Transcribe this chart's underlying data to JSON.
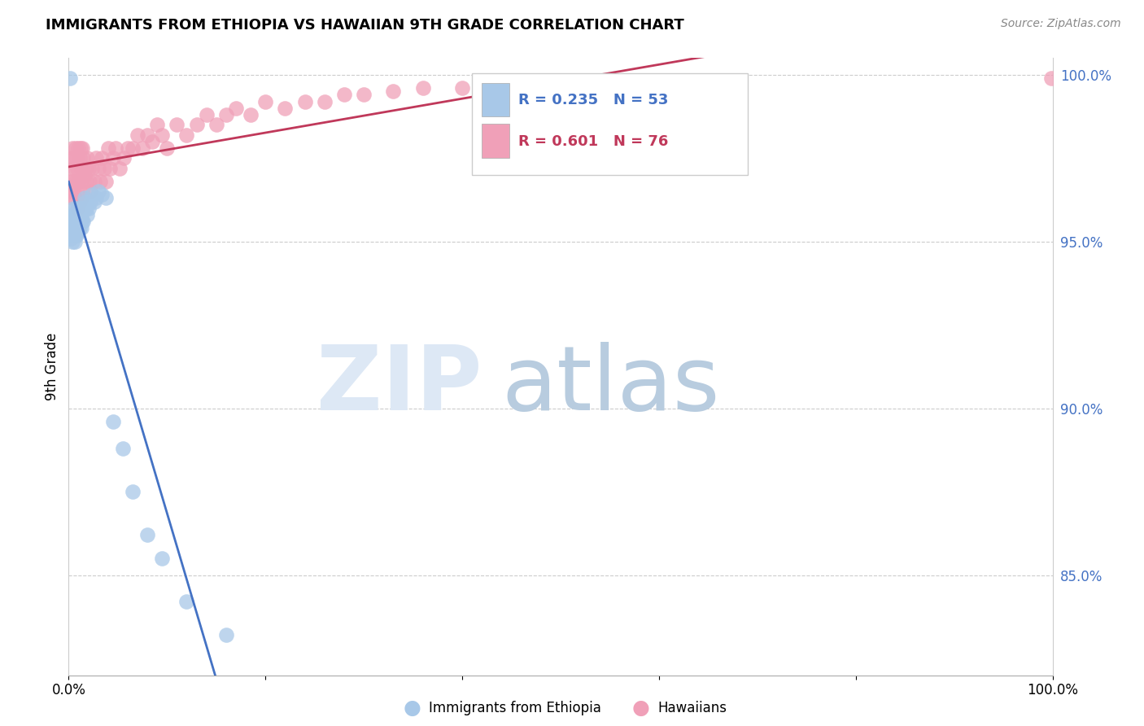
{
  "title": "IMMIGRANTS FROM ETHIOPIA VS HAWAIIAN 9TH GRADE CORRELATION CHART",
  "source": "Source: ZipAtlas.com",
  "ylabel": "9th Grade",
  "legend_r_blue": "0.235",
  "legend_n_blue": "53",
  "legend_r_pink": "0.601",
  "legend_n_pink": "76",
  "blue_color": "#a8c8e8",
  "pink_color": "#f0a0b8",
  "blue_line_color": "#4472c4",
  "pink_line_color": "#c0385a",
  "blue_scatter_x": [
    0.001,
    0.002,
    0.002,
    0.003,
    0.003,
    0.004,
    0.004,
    0.004,
    0.005,
    0.005,
    0.005,
    0.006,
    0.006,
    0.006,
    0.007,
    0.007,
    0.007,
    0.008,
    0.008,
    0.008,
    0.009,
    0.009,
    0.01,
    0.01,
    0.01,
    0.011,
    0.011,
    0.012,
    0.012,
    0.013,
    0.013,
    0.014,
    0.015,
    0.015,
    0.016,
    0.017,
    0.018,
    0.019,
    0.02,
    0.022,
    0.024,
    0.026,
    0.028,
    0.03,
    0.034,
    0.038,
    0.045,
    0.055,
    0.065,
    0.08,
    0.095,
    0.12,
    0.16
  ],
  "blue_scatter_y": [
    0.999,
    0.957,
    0.951,
    0.955,
    0.953,
    0.958,
    0.956,
    0.95,
    0.96,
    0.956,
    0.953,
    0.958,
    0.954,
    0.95,
    0.96,
    0.955,
    0.952,
    0.959,
    0.956,
    0.952,
    0.957,
    0.953,
    0.96,
    0.956,
    0.953,
    0.958,
    0.954,
    0.96,
    0.956,
    0.958,
    0.954,
    0.956,
    0.96,
    0.956,
    0.963,
    0.962,
    0.96,
    0.958,
    0.96,
    0.962,
    0.964,
    0.962,
    0.963,
    0.965,
    0.964,
    0.963,
    0.896,
    0.888,
    0.875,
    0.862,
    0.855,
    0.842,
    0.832
  ],
  "pink_scatter_x": [
    0.001,
    0.002,
    0.002,
    0.003,
    0.003,
    0.004,
    0.004,
    0.005,
    0.005,
    0.006,
    0.006,
    0.007,
    0.007,
    0.008,
    0.008,
    0.009,
    0.009,
    0.01,
    0.01,
    0.011,
    0.011,
    0.012,
    0.012,
    0.013,
    0.013,
    0.014,
    0.014,
    0.015,
    0.016,
    0.017,
    0.018,
    0.019,
    0.02,
    0.021,
    0.022,
    0.024,
    0.026,
    0.028,
    0.03,
    0.032,
    0.034,
    0.036,
    0.038,
    0.04,
    0.042,
    0.045,
    0.048,
    0.052,
    0.056,
    0.06,
    0.065,
    0.07,
    0.075,
    0.08,
    0.085,
    0.09,
    0.095,
    0.1,
    0.11,
    0.12,
    0.13,
    0.14,
    0.15,
    0.16,
    0.17,
    0.185,
    0.2,
    0.22,
    0.24,
    0.26,
    0.28,
    0.3,
    0.33,
    0.36,
    0.4,
    0.999
  ],
  "pink_scatter_y": [
    0.968,
    0.975,
    0.965,
    0.972,
    0.963,
    0.978,
    0.968,
    0.975,
    0.965,
    0.972,
    0.963,
    0.978,
    0.968,
    0.975,
    0.965,
    0.972,
    0.96,
    0.978,
    0.968,
    0.975,
    0.962,
    0.978,
    0.968,
    0.972,
    0.963,
    0.978,
    0.965,
    0.975,
    0.97,
    0.972,
    0.968,
    0.975,
    0.972,
    0.968,
    0.965,
    0.972,
    0.968,
    0.975,
    0.972,
    0.968,
    0.975,
    0.972,
    0.968,
    0.978,
    0.972,
    0.975,
    0.978,
    0.972,
    0.975,
    0.978,
    0.978,
    0.982,
    0.978,
    0.982,
    0.98,
    0.985,
    0.982,
    0.978,
    0.985,
    0.982,
    0.985,
    0.988,
    0.985,
    0.988,
    0.99,
    0.988,
    0.992,
    0.99,
    0.992,
    0.992,
    0.994,
    0.994,
    0.995,
    0.996,
    0.996,
    0.999
  ],
  "xlim": [
    0.0,
    1.0
  ],
  "ylim": [
    0.82,
    1.005
  ],
  "yticks": [
    0.85,
    0.9,
    0.95,
    1.0
  ],
  "ytick_labels": [
    "85.0%",
    "90.0%",
    "95.0%",
    "100.0%"
  ],
  "xtick_positions": [
    0.0,
    1.0
  ],
  "xtick_labels": [
    "0.0%",
    "100.0%"
  ]
}
